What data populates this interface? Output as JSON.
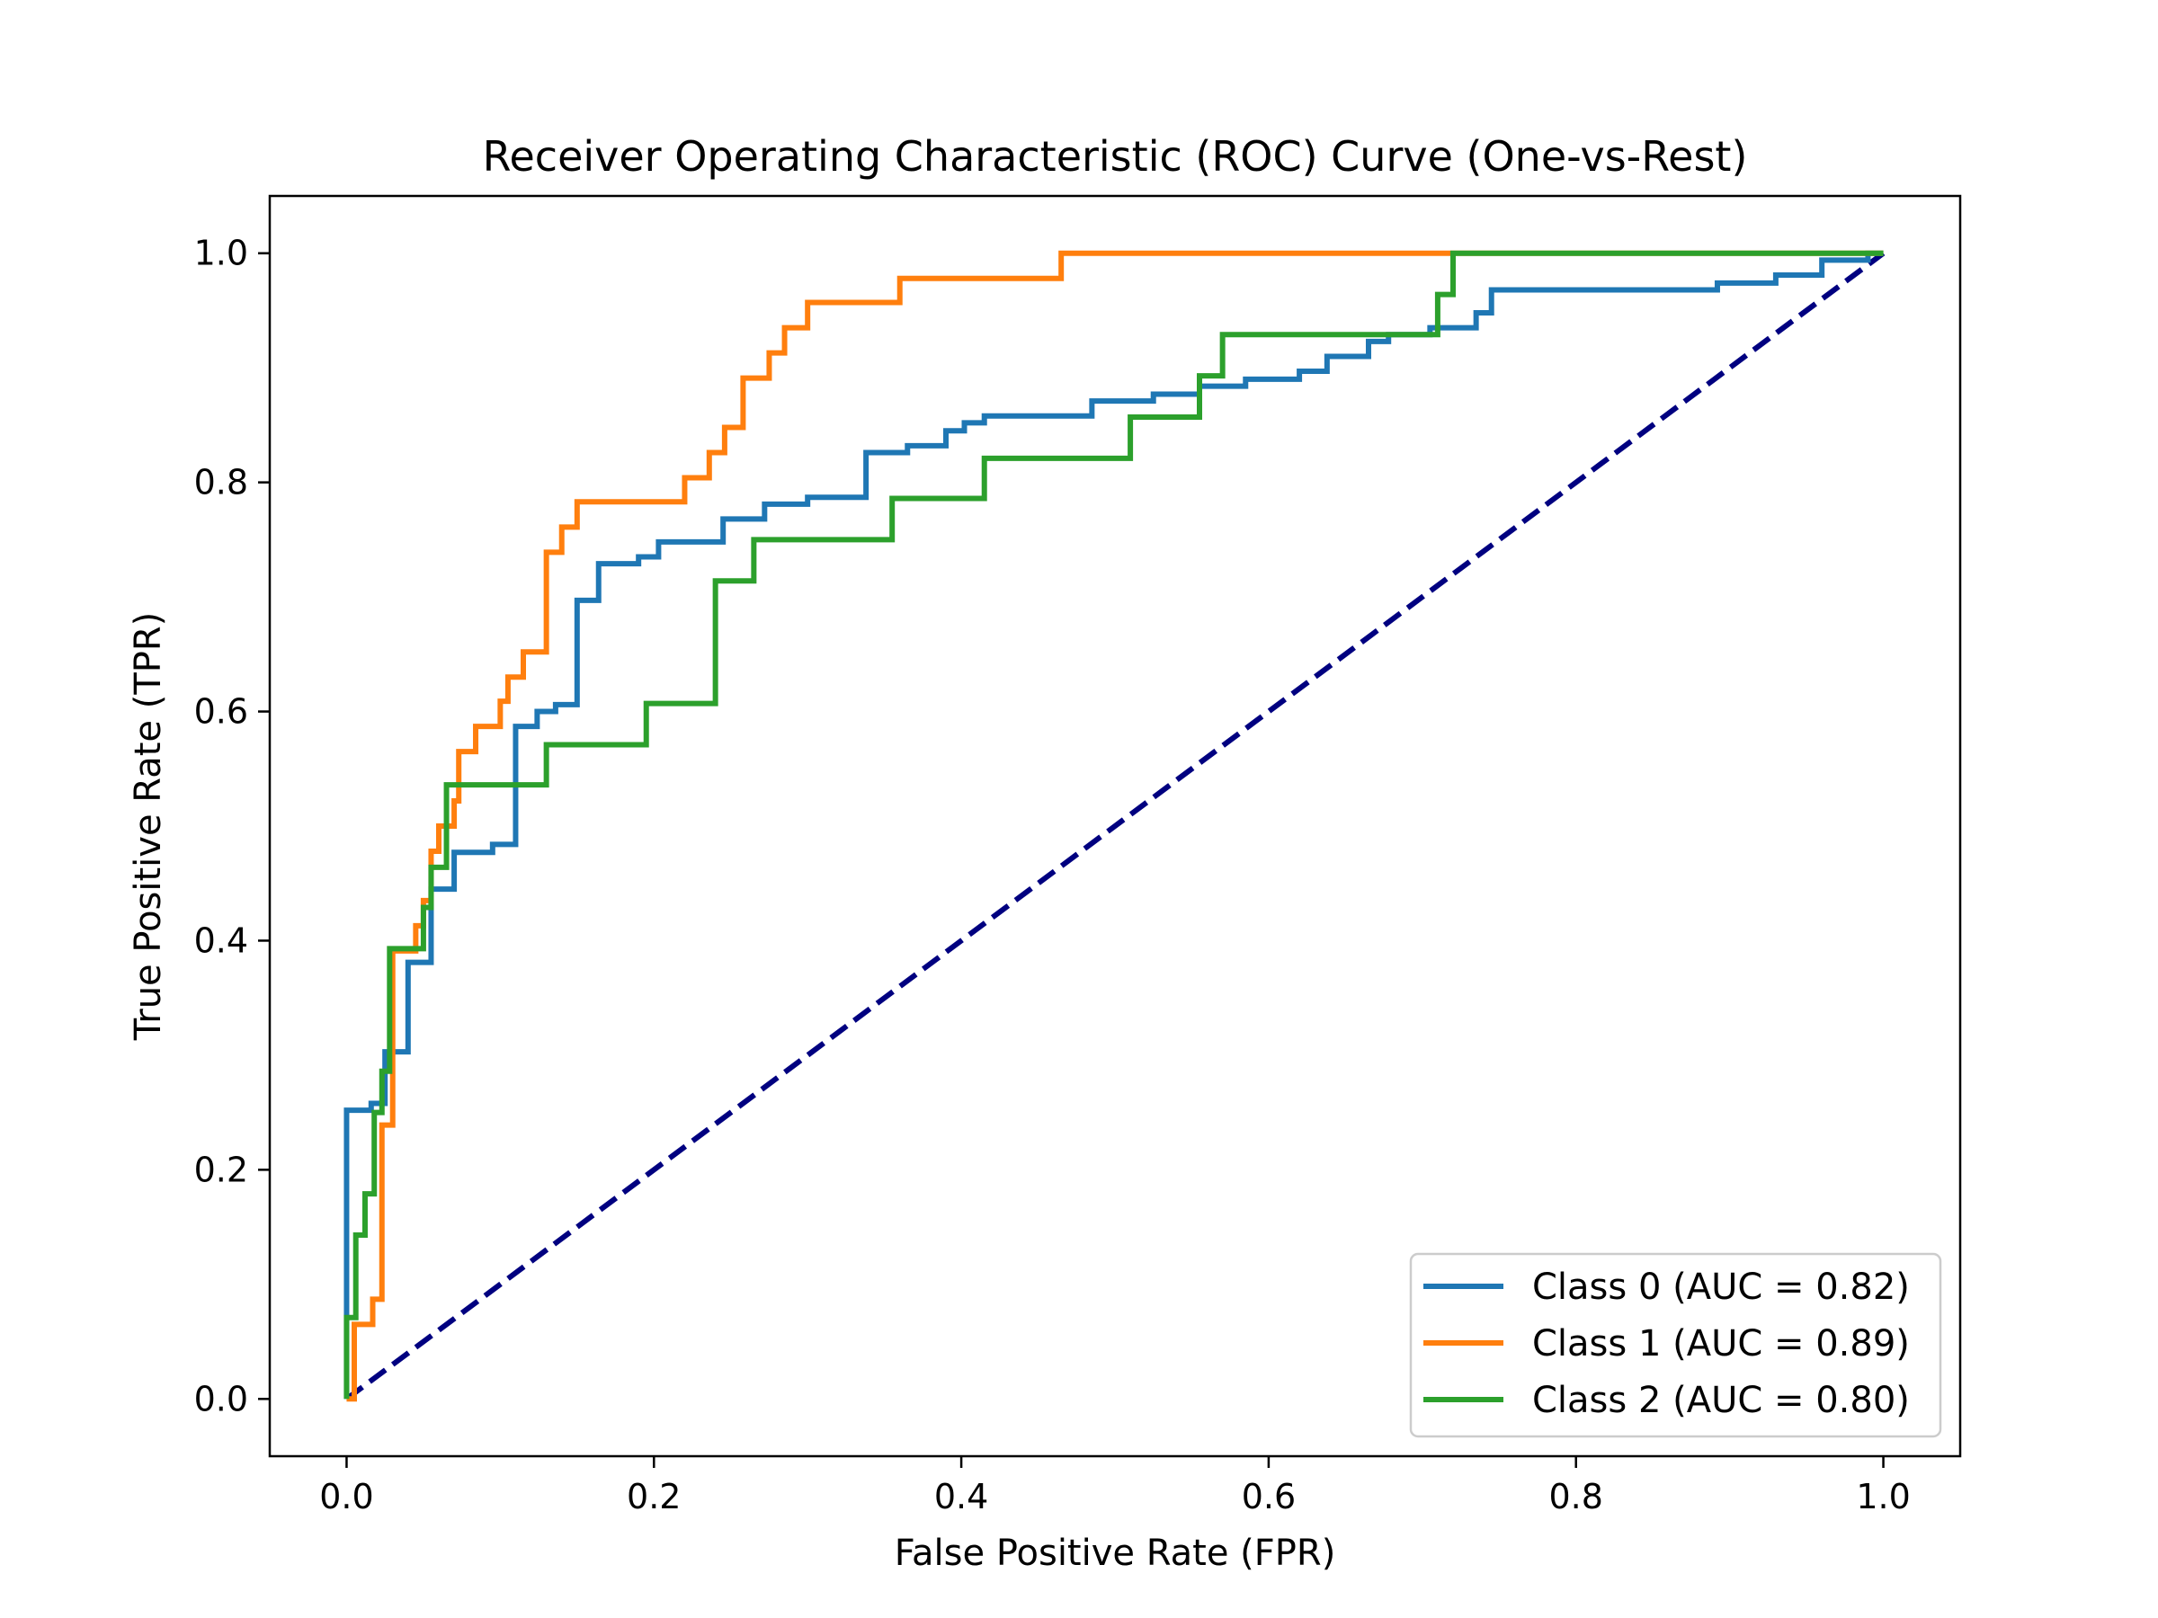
{
  "chart_data": {
    "type": "line",
    "title": "Receiver Operating Characteristic (ROC) Curve (One-vs-Rest)",
    "xlabel": "False Positive Rate (FPR)",
    "ylabel": "True Positive Rate (TPR)",
    "xlim": [
      -0.05,
      1.05
    ],
    "ylim": [
      -0.05,
      1.05
    ],
    "xticks": [
      0.0,
      0.2,
      0.4,
      0.6,
      0.8,
      1.0
    ],
    "yticks": [
      0.0,
      0.2,
      0.4,
      0.6,
      0.8,
      1.0
    ],
    "xtick_labels": [
      "0.0",
      "0.2",
      "0.4",
      "0.6",
      "0.8",
      "1.0"
    ],
    "ytick_labels": [
      "0.0",
      "0.2",
      "0.4",
      "0.6",
      "0.8",
      "1.0"
    ],
    "grid": false,
    "legend_position": "bottom-right",
    "series": [
      {
        "name": "Class 0 (AUC = 0.82)",
        "color": "#1f77b4",
        "step": true,
        "points": [
          [
            0.0,
            0.0
          ],
          [
            0.0,
            0.252
          ],
          [
            0.016,
            0.252
          ],
          [
            0.016,
            0.258
          ],
          [
            0.025,
            0.258
          ],
          [
            0.025,
            0.303
          ],
          [
            0.04,
            0.303
          ],
          [
            0.04,
            0.381
          ],
          [
            0.055,
            0.381
          ],
          [
            0.055,
            0.445
          ],
          [
            0.07,
            0.445
          ],
          [
            0.07,
            0.477
          ],
          [
            0.095,
            0.477
          ],
          [
            0.095,
            0.484
          ],
          [
            0.11,
            0.484
          ],
          [
            0.11,
            0.587
          ],
          [
            0.124,
            0.587
          ],
          [
            0.124,
            0.6
          ],
          [
            0.136,
            0.6
          ],
          [
            0.136,
            0.606
          ],
          [
            0.15,
            0.606
          ],
          [
            0.15,
            0.697
          ],
          [
            0.164,
            0.697
          ],
          [
            0.164,
            0.729
          ],
          [
            0.19,
            0.729
          ],
          [
            0.19,
            0.735
          ],
          [
            0.203,
            0.735
          ],
          [
            0.203,
            0.748
          ],
          [
            0.245,
            0.748
          ],
          [
            0.245,
            0.768
          ],
          [
            0.272,
            0.768
          ],
          [
            0.272,
            0.781
          ],
          [
            0.3,
            0.781
          ],
          [
            0.3,
            0.787
          ],
          [
            0.338,
            0.787
          ],
          [
            0.338,
            0.826
          ],
          [
            0.365,
            0.826
          ],
          [
            0.365,
            0.832
          ],
          [
            0.39,
            0.832
          ],
          [
            0.39,
            0.845
          ],
          [
            0.402,
            0.845
          ],
          [
            0.402,
            0.852
          ],
          [
            0.415,
            0.852
          ],
          [
            0.415,
            0.858
          ],
          [
            0.485,
            0.858
          ],
          [
            0.485,
            0.871
          ],
          [
            0.525,
            0.871
          ],
          [
            0.525,
            0.877
          ],
          [
            0.555,
            0.877
          ],
          [
            0.555,
            0.884
          ],
          [
            0.585,
            0.884
          ],
          [
            0.585,
            0.89
          ],
          [
            0.62,
            0.89
          ],
          [
            0.62,
            0.897
          ],
          [
            0.638,
            0.897
          ],
          [
            0.638,
            0.91
          ],
          [
            0.665,
            0.91
          ],
          [
            0.665,
            0.923
          ],
          [
            0.678,
            0.923
          ],
          [
            0.678,
            0.929
          ],
          [
            0.705,
            0.929
          ],
          [
            0.705,
            0.935
          ],
          [
            0.735,
            0.935
          ],
          [
            0.735,
            0.948
          ],
          [
            0.745,
            0.948
          ],
          [
            0.745,
            0.968
          ],
          [
            0.892,
            0.968
          ],
          [
            0.892,
            0.974
          ],
          [
            0.93,
            0.974
          ],
          [
            0.93,
            0.981
          ],
          [
            0.96,
            0.981
          ],
          [
            0.96,
            0.994
          ],
          [
            0.99,
            0.994
          ],
          [
            0.99,
            1.0
          ],
          [
            1.0,
            1.0
          ]
        ]
      },
      {
        "name": "Class 1 (AUC = 0.89)",
        "color": "#ff7f0e",
        "step": true,
        "points": [
          [
            0.0,
            0.0
          ],
          [
            0.005,
            0.0
          ],
          [
            0.005,
            0.065
          ],
          [
            0.017,
            0.065
          ],
          [
            0.017,
            0.087
          ],
          [
            0.023,
            0.087
          ],
          [
            0.023,
            0.239
          ],
          [
            0.03,
            0.239
          ],
          [
            0.03,
            0.391
          ],
          [
            0.045,
            0.391
          ],
          [
            0.045,
            0.413
          ],
          [
            0.05,
            0.413
          ],
          [
            0.05,
            0.435
          ],
          [
            0.055,
            0.435
          ],
          [
            0.055,
            0.478
          ],
          [
            0.06,
            0.478
          ],
          [
            0.06,
            0.5
          ],
          [
            0.07,
            0.5
          ],
          [
            0.07,
            0.522
          ],
          [
            0.073,
            0.522
          ],
          [
            0.073,
            0.565
          ],
          [
            0.084,
            0.565
          ],
          [
            0.084,
            0.587
          ],
          [
            0.1,
            0.587
          ],
          [
            0.1,
            0.609
          ],
          [
            0.105,
            0.609
          ],
          [
            0.105,
            0.63
          ],
          [
            0.115,
            0.63
          ],
          [
            0.115,
            0.652
          ],
          [
            0.13,
            0.652
          ],
          [
            0.13,
            0.739
          ],
          [
            0.14,
            0.739
          ],
          [
            0.14,
            0.761
          ],
          [
            0.15,
            0.761
          ],
          [
            0.15,
            0.783
          ],
          [
            0.22,
            0.783
          ],
          [
            0.22,
            0.804
          ],
          [
            0.236,
            0.804
          ],
          [
            0.236,
            0.826
          ],
          [
            0.246,
            0.826
          ],
          [
            0.246,
            0.848
          ],
          [
            0.258,
            0.848
          ],
          [
            0.258,
            0.891
          ],
          [
            0.275,
            0.891
          ],
          [
            0.275,
            0.913
          ],
          [
            0.285,
            0.913
          ],
          [
            0.285,
            0.935
          ],
          [
            0.3,
            0.935
          ],
          [
            0.3,
            0.957
          ],
          [
            0.36,
            0.957
          ],
          [
            0.36,
            0.978
          ],
          [
            0.465,
            0.978
          ],
          [
            0.465,
            1.0
          ],
          [
            1.0,
            1.0
          ]
        ]
      },
      {
        "name": "Class 2 (AUC = 0.80)",
        "color": "#2ca02c",
        "step": true,
        "points": [
          [
            0.0,
            0.0
          ],
          [
            0.0,
            0.071
          ],
          [
            0.006,
            0.071
          ],
          [
            0.006,
            0.143
          ],
          [
            0.012,
            0.143
          ],
          [
            0.012,
            0.179
          ],
          [
            0.018,
            0.179
          ],
          [
            0.018,
            0.25
          ],
          [
            0.023,
            0.25
          ],
          [
            0.023,
            0.286
          ],
          [
            0.028,
            0.286
          ],
          [
            0.028,
            0.393
          ],
          [
            0.05,
            0.393
          ],
          [
            0.05,
            0.429
          ],
          [
            0.055,
            0.429
          ],
          [
            0.055,
            0.464
          ],
          [
            0.065,
            0.464
          ],
          [
            0.065,
            0.536
          ],
          [
            0.13,
            0.536
          ],
          [
            0.13,
            0.571
          ],
          [
            0.195,
            0.571
          ],
          [
            0.195,
            0.607
          ],
          [
            0.24,
            0.607
          ],
          [
            0.24,
            0.714
          ],
          [
            0.265,
            0.714
          ],
          [
            0.265,
            0.75
          ],
          [
            0.355,
            0.75
          ],
          [
            0.355,
            0.786
          ],
          [
            0.415,
            0.786
          ],
          [
            0.415,
            0.821
          ],
          [
            0.51,
            0.821
          ],
          [
            0.51,
            0.857
          ],
          [
            0.555,
            0.857
          ],
          [
            0.555,
            0.893
          ],
          [
            0.57,
            0.893
          ],
          [
            0.57,
            0.929
          ],
          [
            0.71,
            0.929
          ],
          [
            0.71,
            0.964
          ],
          [
            0.72,
            0.964
          ],
          [
            0.72,
            1.0
          ],
          [
            1.0,
            1.0
          ]
        ]
      }
    ],
    "reference_line": {
      "color": "#000080",
      "dashed": true,
      "points": [
        [
          0.0,
          0.0
        ],
        [
          1.0,
          1.0
        ]
      ]
    }
  }
}
